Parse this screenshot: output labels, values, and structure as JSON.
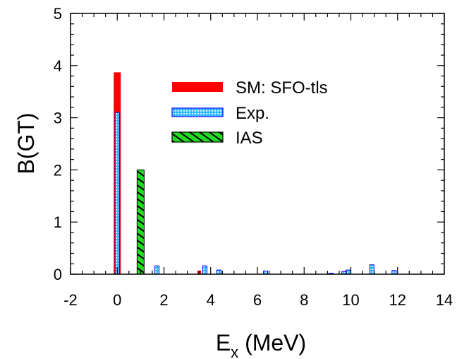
{
  "chart_data": {
    "type": "bar",
    "title": "",
    "xlabel": {
      "main": "E",
      "sub": "x",
      "rest": " (MeV)"
    },
    "ylabel": "B(GT)",
    "xlim": [
      -2,
      14
    ],
    "ylim": [
      0,
      5
    ],
    "xticks": [
      "-2",
      "0",
      "2",
      "4",
      "6",
      "8",
      "10",
      "12",
      "14"
    ],
    "yticks": [
      "0",
      "1",
      "2",
      "3",
      "4",
      "5"
    ],
    "grid": false,
    "legend_position": "top-right",
    "series": [
      {
        "name": "SM: SFO-tls",
        "color": "#ff0000",
        "pattern": "solid",
        "points": [
          {
            "x": 0.0,
            "y": 3.87
          },
          {
            "x": 3.6,
            "y": 0.07
          },
          {
            "x": 9.9,
            "y": 0.07
          }
        ]
      },
      {
        "name": "Exp.",
        "color": "#33bbff",
        "pattern": "dots",
        "points": [
          {
            "x": 0.0,
            "y": 3.1
          },
          {
            "x": 1.7,
            "y": 0.16
          },
          {
            "x": 3.75,
            "y": 0.16
          },
          {
            "x": 4.35,
            "y": 0.08
          },
          {
            "x": 6.35,
            "y": 0.06
          },
          {
            "x": 9.15,
            "y": 0.02
          },
          {
            "x": 9.7,
            "y": 0.05
          },
          {
            "x": 9.9,
            "y": 0.08
          },
          {
            "x": 10.9,
            "y": 0.18
          },
          {
            "x": 11.85,
            "y": 0.07
          }
        ]
      },
      {
        "name": "IAS",
        "color": "#22dd22",
        "pattern": "hatch",
        "points": [
          {
            "x": 1.0,
            "y": 2.0
          }
        ]
      }
    ]
  }
}
